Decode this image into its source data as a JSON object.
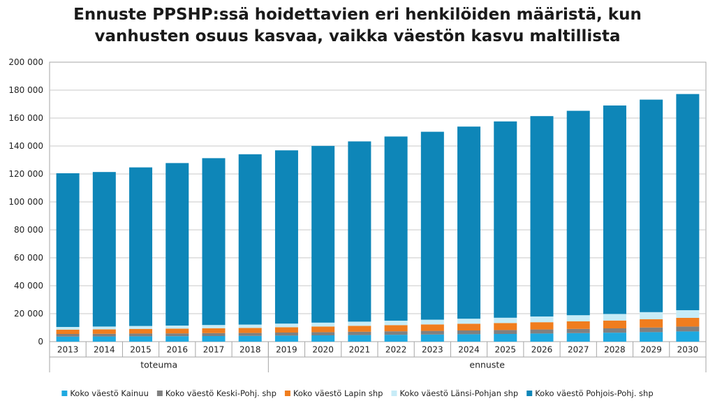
{
  "chart_data": {
    "type": "bar",
    "stacked": true,
    "title_lines": [
      "Ennuste PPSHP:ssä hoidettavien eri henkilöiden määristä, kun",
      "vanhusten osuus kasvaa, vaikka väestön kasvu maltillista"
    ],
    "categories": [
      "2013",
      "2014",
      "2015",
      "2016",
      "2017",
      "2018",
      "2019",
      "2020",
      "2021",
      "2022",
      "2023",
      "2024",
      "2025",
      "2026",
      "2027",
      "2028",
      "2029",
      "2030"
    ],
    "groups": [
      {
        "label": "toteuma",
        "from": "2013",
        "to": "2018"
      },
      {
        "label": "ennuste",
        "from": "2019",
        "to": "2030"
      }
    ],
    "ylim": [
      0,
      200000
    ],
    "yticks": [
      0,
      20000,
      40000,
      60000,
      80000,
      100000,
      120000,
      140000,
      160000,
      180000,
      200000
    ],
    "ytick_labels": [
      "0",
      "20 000",
      "40 000",
      "60 000",
      "80 000",
      "100 000",
      "120 000",
      "140 000",
      "160 000",
      "180 000",
      "200 000"
    ],
    "grid": true,
    "legend_position": "bottom",
    "series": [
      {
        "name": "Koko väestö Kainuu",
        "color": "#1fa9e0",
        "values": [
          3600,
          3700,
          3800,
          3900,
          4000,
          4100,
          4300,
          4500,
          4700,
          4900,
          5100,
          5300,
          5500,
          5800,
          6100,
          6400,
          6800,
          7300
        ]
      },
      {
        "name": "Koko väestö Keski-Pohj. shp",
        "color": "#808080",
        "values": [
          1900,
          1900,
          2000,
          2000,
          2100,
          2100,
          2200,
          2300,
          2400,
          2500,
          2600,
          2700,
          2800,
          2900,
          3000,
          3100,
          3300,
          3500
        ]
      },
      {
        "name": "Koko väestö Lapin shp",
        "color": "#f07d1e",
        "values": [
          3100,
          3200,
          3300,
          3400,
          3500,
          3600,
          3800,
          4000,
          4200,
          4400,
          4600,
          4800,
          5000,
          5200,
          5400,
          5600,
          5900,
          6200
        ]
      },
      {
        "name": "Koko väestö Länsi-Pohjan shp",
        "color": "#c7ecf7",
        "values": [
          1900,
          2000,
          2100,
          2200,
          2300,
          2400,
          2600,
          2800,
          3000,
          3200,
          3400,
          3600,
          3800,
          4100,
          4400,
          4700,
          5100,
          5500
        ]
      },
      {
        "name": "Koko väestö Pohjois-Pohj. shp",
        "color": "#0e86b8",
        "values": [
          110000,
          110600,
          113500,
          116300,
          119400,
          121900,
          124000,
          126500,
          129000,
          131800,
          134500,
          137500,
          140500,
          143400,
          146300,
          149200,
          152100,
          154700
        ]
      }
    ]
  }
}
